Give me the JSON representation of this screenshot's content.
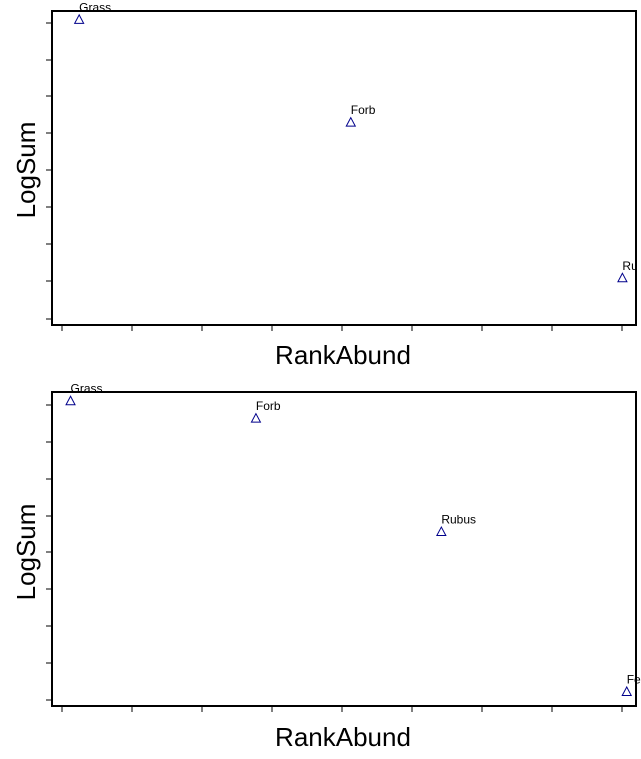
{
  "chart_data": [
    {
      "type": "scatter",
      "xlabel": "RankAbund",
      "ylabel": "LogSum",
      "marker": "open-triangle",
      "marker_color": "#00008b",
      "xlim": [
        0.9,
        3.05
      ],
      "ylim": [
        -0.1,
        1.03
      ],
      "x_tick_labels_shown": false,
      "y_tick_labels_shown": false,
      "points": [
        {
          "label": "Grass",
          "x": 1,
          "y": 1.0
        },
        {
          "label": "Forb",
          "x": 2,
          "y": 0.63
        },
        {
          "label": "Ru",
          "x": 3,
          "y": 0.07
        }
      ]
    },
    {
      "type": "scatter",
      "xlabel": "RankAbund",
      "ylabel": "LogSum",
      "marker": "open-triangle",
      "marker_color": "#00008b",
      "xlim": [
        0.9,
        4.05
      ],
      "ylim": [
        -0.05,
        1.03
      ],
      "x_tick_labels_shown": false,
      "y_tick_labels_shown": false,
      "points": [
        {
          "label": "Grass",
          "x": 1,
          "y": 1.0
        },
        {
          "label": "Forb",
          "x": 2,
          "y": 0.94
        },
        {
          "label": "Rubus",
          "x": 3,
          "y": 0.55
        },
        {
          "label": "Fer",
          "x": 4,
          "y": 0.0
        }
      ]
    }
  ]
}
